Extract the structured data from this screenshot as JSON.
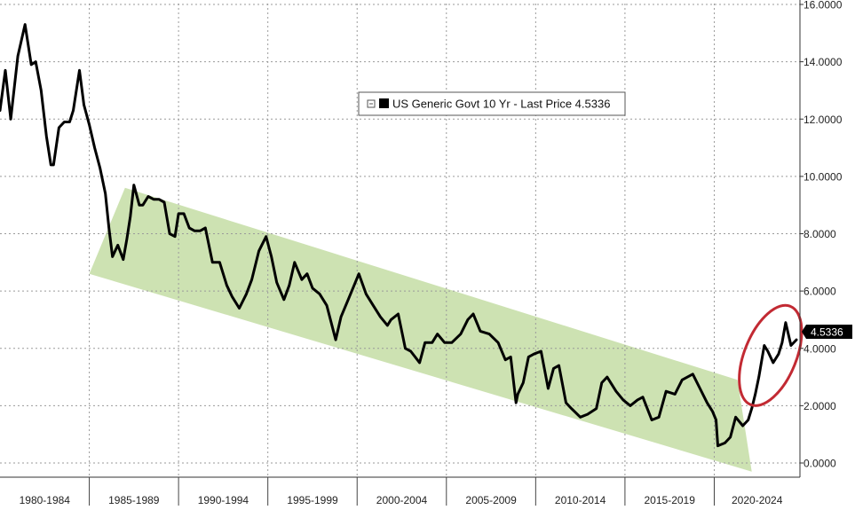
{
  "chart_data": {
    "type": "line",
    "title": "",
    "xlabel": "",
    "ylabel": "",
    "x_range": [
      1980,
      2024.8
    ],
    "ylim": [
      -0.3,
      16.2
    ],
    "y_ticks": [
      "0.0000",
      "2.0000",
      "4.0000",
      "6.0000",
      "8.0000",
      "10.0000",
      "12.0000",
      "14.0000",
      "16.0000"
    ],
    "y_tick_values": [
      0,
      2,
      4,
      6,
      8,
      10,
      12,
      14,
      16
    ],
    "x_tick_labels": [
      "1980-1984",
      "1985-1989",
      "1990-1994",
      "1995-1999",
      "2000-2004",
      "2005-2009",
      "2010-2014",
      "2015-2019",
      "2020-2024"
    ],
    "x_period_starts": [
      1980,
      1985,
      1990,
      1995,
      2000,
      2005,
      2010,
      2015,
      2020
    ],
    "grid": "dotted",
    "y_axis_side": "right",
    "legend_position": "top-center",
    "series": [
      {
        "name": "US Generic Govt 10 Yr - Last Price 4.5336",
        "color": "#000000",
        "x": [
          1980.0,
          1980.3,
          1980.6,
          1981.0,
          1981.4,
          1981.75,
          1982.0,
          1982.3,
          1982.6,
          1982.85,
          1983.0,
          1983.3,
          1983.6,
          1983.9,
          1984.1,
          1984.45,
          1984.7,
          1985.0,
          1985.3,
          1985.6,
          1985.9,
          1986.1,
          1986.3,
          1986.6,
          1986.9,
          1987.1,
          1987.3,
          1987.5,
          1987.8,
          1988.0,
          1988.3,
          1988.6,
          1988.9,
          1989.2,
          1989.5,
          1989.8,
          1990.0,
          1990.3,
          1990.6,
          1990.9,
          1991.2,
          1991.5,
          1991.9,
          1992.3,
          1992.7,
          1993.0,
          1993.4,
          1993.8,
          1994.1,
          1994.5,
          1994.9,
          1995.2,
          1995.5,
          1995.9,
          1996.2,
          1996.5,
          1996.9,
          1997.2,
          1997.5,
          1997.9,
          1998.3,
          1998.8,
          1999.1,
          1999.5,
          1999.9,
          2000.1,
          2000.5,
          2000.9,
          2001.3,
          2001.7,
          2001.9,
          2002.3,
          2002.7,
          2003.0,
          2003.5,
          2003.8,
          2004.2,
          2004.5,
          2004.9,
          2005.3,
          2005.8,
          2006.2,
          2006.5,
          2006.9,
          2007.4,
          2007.9,
          2008.3,
          2008.6,
          2008.9,
          2009.0,
          2009.3,
          2009.6,
          2009.9,
          2010.3,
          2010.7,
          2011.0,
          2011.3,
          2011.7,
          2012.0,
          2012.5,
          2012.9,
          2013.4,
          2013.7,
          2014.0,
          2014.5,
          2014.9,
          2015.3,
          2015.7,
          2016.0,
          2016.5,
          2016.9,
          2017.3,
          2017.8,
          2018.2,
          2018.8,
          2019.2,
          2019.6,
          2019.9,
          2020.1,
          2020.2,
          2020.6,
          2020.9,
          2021.2,
          2021.6,
          2021.9,
          2022.1,
          2022.3,
          2022.5,
          2022.8,
          2023.0,
          2023.3,
          2023.6,
          2023.8,
          2024.0,
          2024.3,
          2024.6
        ],
        "values": [
          12.3,
          13.7,
          12.0,
          14.2,
          15.3,
          13.9,
          14.0,
          13.0,
          11.4,
          10.4,
          10.4,
          11.7,
          11.9,
          11.9,
          12.3,
          13.7,
          12.5,
          11.8,
          11.0,
          10.3,
          9.4,
          8.2,
          7.2,
          7.6,
          7.1,
          7.8,
          8.6,
          9.7,
          9.0,
          9.0,
          9.3,
          9.2,
          9.2,
          9.1,
          8.0,
          7.9,
          8.7,
          8.7,
          8.2,
          8.1,
          8.1,
          8.2,
          7.0,
          7.0,
          6.2,
          5.8,
          5.4,
          5.9,
          6.4,
          7.4,
          7.9,
          7.2,
          6.3,
          5.7,
          6.2,
          7.0,
          6.4,
          6.6,
          6.1,
          5.9,
          5.5,
          4.3,
          5.1,
          5.7,
          6.3,
          6.6,
          5.9,
          5.5,
          5.1,
          4.8,
          5.0,
          5.2,
          4.0,
          3.9,
          3.5,
          4.2,
          4.2,
          4.5,
          4.2,
          4.2,
          4.5,
          5.0,
          5.2,
          4.6,
          4.5,
          4.2,
          3.6,
          3.7,
          2.1,
          2.4,
          2.8,
          3.7,
          3.8,
          3.9,
          2.6,
          3.3,
          3.4,
          2.1,
          1.9,
          1.6,
          1.7,
          1.9,
          2.8,
          3.0,
          2.5,
          2.2,
          2.0,
          2.2,
          2.3,
          1.5,
          1.6,
          2.5,
          2.4,
          2.9,
          3.1,
          2.6,
          2.1,
          1.8,
          1.5,
          0.6,
          0.7,
          0.9,
          1.6,
          1.3,
          1.5,
          1.9,
          2.4,
          3.0,
          4.1,
          3.9,
          3.5,
          3.8,
          4.2,
          4.9,
          4.1,
          4.3
        ]
      }
    ],
    "last_price_label": "4.5336",
    "last_price_value": 4.5336,
    "channel": {
      "color": "#cde2b2",
      "upper": {
        "x0": 1987.0,
        "y0": 9.6,
        "x1": 2021.3,
        "y1": 2.9
      },
      "lower": {
        "x0": 1985.0,
        "y0": 6.6,
        "x1": 2022.1,
        "y1": -0.3
      }
    },
    "highlight": {
      "shape": "ellipse",
      "color": "#c22a33",
      "x_range": [
        2021.7,
        2024.6
      ],
      "y_range": [
        1.9,
        5.6
      ]
    }
  },
  "legend": {
    "label": "US Generic Govt 10 Yr - Last Price 4.5336"
  }
}
